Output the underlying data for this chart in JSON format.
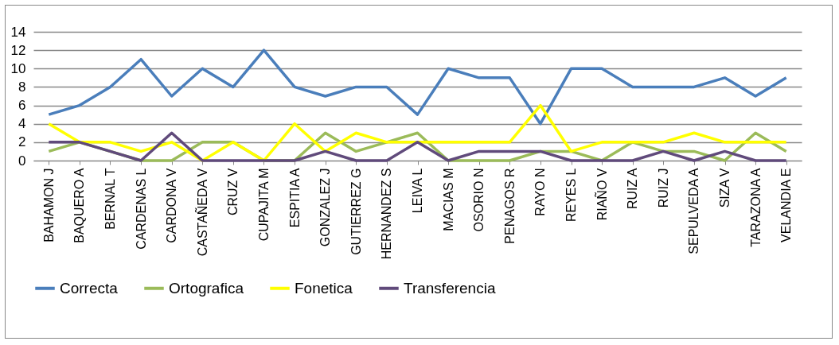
{
  "chart_data": {
    "type": "line",
    "categories": [
      "BAHAMON J",
      "BAQUERO A",
      "BERNAL T",
      "CARDENAS L",
      "CARDONA V",
      "CASTAÑEDA V",
      "CRUZ V",
      "CUPAJITA M",
      "ESPITIA A",
      "GONZALEZ J",
      "GUTIERREZ G",
      "HERNANDEZ S",
      "LEIVA L",
      "MACIAS M",
      "OSORIO N",
      "PENAGOS R",
      "RAYO N",
      "REYES L",
      "RIAÑO V",
      "RUIZ A",
      "RUIZ J",
      "SEPULVEDA A",
      "SIZA V",
      "TARAZONA A",
      "VELANDIA E"
    ],
    "series": [
      {
        "name": "Correcta",
        "color": "#4a7ebb",
        "values": [
          5,
          6,
          8,
          11,
          7,
          10,
          8,
          12,
          8,
          7,
          8,
          8,
          5,
          10,
          9,
          9,
          4,
          10,
          10,
          8,
          8,
          8,
          9,
          7,
          9
        ]
      },
      {
        "name": "Ortografica",
        "color": "#9bbb59",
        "values": [
          1,
          2,
          1,
          0,
          0,
          2,
          2,
          0,
          0,
          3,
          1,
          2,
          3,
          0,
          0,
          0,
          1,
          1,
          0,
          2,
          1,
          1,
          0,
          3,
          1
        ]
      },
      {
        "name": "Fonetica",
        "color": "#ffff00",
        "values": [
          4,
          2,
          2,
          1,
          2,
          0,
          2,
          0,
          4,
          1,
          3,
          2,
          2,
          2,
          2,
          2,
          6,
          1,
          2,
          2,
          2,
          3,
          2,
          2,
          2
        ]
      },
      {
        "name": "Transferencia",
        "color": "#604a7b",
        "values": [
          2,
          2,
          1,
          0,
          3,
          0,
          0,
          0,
          0,
          1,
          0,
          0,
          2,
          0,
          1,
          1,
          1,
          0,
          0,
          0,
          1,
          0,
          1,
          0,
          0
        ]
      }
    ],
    "ylim": [
      0,
      14
    ],
    "yticks": [
      0,
      2,
      4,
      6,
      8,
      10,
      12,
      14
    ],
    "grid": "y",
    "legend": "bottom",
    "marker": "none",
    "line_style": "solid"
  }
}
